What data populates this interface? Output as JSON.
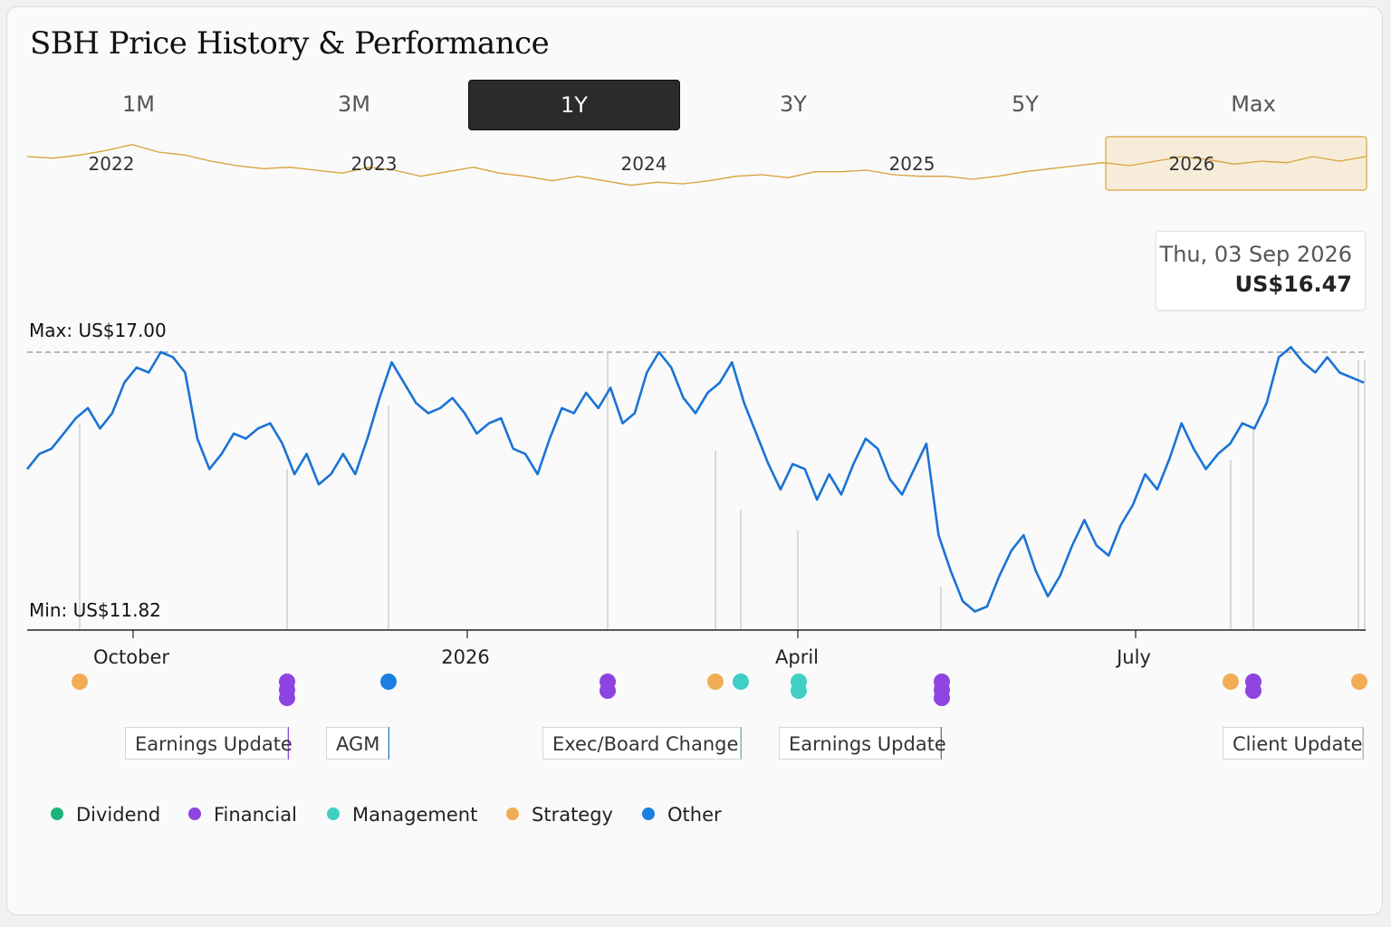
{
  "page_title": "SBH Price History & Performance",
  "tabs": [
    {
      "label": "1M",
      "active": false
    },
    {
      "label": "3M",
      "active": false
    },
    {
      "label": "1Y",
      "active": true
    },
    {
      "label": "3Y",
      "active": false
    },
    {
      "label": "5Y",
      "active": false
    },
    {
      "label": "Max",
      "active": false
    }
  ],
  "tooltip": {
    "date": "Thu, 03 Sep 2026",
    "price": "US$16.47"
  },
  "reference_lines": {
    "max_label": "Max: US$17.00",
    "min_label": "Min: US$11.82"
  },
  "event_labels": [
    {
      "text": "Earnings Update",
      "category": "Financial"
    },
    {
      "text": "AGM",
      "category": "Other"
    },
    {
      "text": "Exec/Board Change",
      "category": "Management"
    },
    {
      "text": "Earnings Update",
      "category": "Financial"
    },
    {
      "text": "Client Update",
      "category": "Strategy"
    }
  ],
  "legend": [
    {
      "label": "Dividend",
      "color": "#1db37a"
    },
    {
      "label": "Financial",
      "color": "#8e44e0"
    },
    {
      "label": "Management",
      "color": "#3fcfc4"
    },
    {
      "label": "Strategy",
      "color": "#f0ad55"
    },
    {
      "label": "Other",
      "color": "#1a7fe0"
    }
  ],
  "colors": {
    "price_line": "#1a73d6",
    "overview_line": "#d9a13a",
    "overview_window": "#d9a13a"
  },
  "chart_data": [
    {
      "type": "line",
      "role": "overview",
      "x_tick_labels": [
        "2022",
        "2023",
        "2024",
        "2025",
        "2026"
      ],
      "selected_window": "2026",
      "values": [
        15.6,
        15.5,
        15.7,
        16.0,
        16.4,
        15.9,
        15.7,
        15.3,
        15.0,
        14.8,
        14.9,
        14.7,
        14.5,
        14.9,
        14.7,
        14.3,
        14.6,
        14.9,
        14.5,
        14.3,
        14.0,
        14.3,
        14.0,
        13.7,
        13.9,
        13.8,
        14.0,
        14.3,
        14.4,
        14.2,
        14.6,
        14.6,
        14.7,
        14.4,
        14.3,
        14.3,
        14.1,
        14.3,
        14.6,
        14.8,
        15.0,
        15.2,
        15.0,
        15.3,
        15.6,
        15.4,
        15.1,
        15.3,
        15.2,
        15.6,
        15.3,
        15.6
      ]
    },
    {
      "type": "line",
      "role": "main",
      "x_tick_labels": [
        "October",
        "2026",
        "April",
        "July"
      ],
      "y_reference": {
        "max": 17.0,
        "min": 11.82
      },
      "last_point": {
        "date": "Thu, 03 Sep 2026",
        "value": 16.47
      },
      "values": [
        14.7,
        15.0,
        15.1,
        15.4,
        15.7,
        15.9,
        15.5,
        15.8,
        16.4,
        16.7,
        16.6,
        17.0,
        16.9,
        16.6,
        15.3,
        14.7,
        15.0,
        15.4,
        15.3,
        15.5,
        15.6,
        15.2,
        14.6,
        15.0,
        14.4,
        14.6,
        15.0,
        14.6,
        15.3,
        16.1,
        16.8,
        16.4,
        16.0,
        15.8,
        15.9,
        16.1,
        15.8,
        15.4,
        15.6,
        15.7,
        15.1,
        15.0,
        14.6,
        15.3,
        15.9,
        15.8,
        16.2,
        15.9,
        16.3,
        15.6,
        15.8,
        16.6,
        17.0,
        16.7,
        16.1,
        15.8,
        16.2,
        16.4,
        16.8,
        16.0,
        15.4,
        14.8,
        14.3,
        14.8,
        14.7,
        14.1,
        14.6,
        14.2,
        14.8,
        15.3,
        15.1,
        14.5,
        14.2,
        14.7,
        15.2,
        13.4,
        12.7,
        12.1,
        11.9,
        12.0,
        12.6,
        13.1,
        13.4,
        12.7,
        12.2,
        12.6,
        13.2,
        13.7,
        13.2,
        13.0,
        13.6,
        14.0,
        14.6,
        14.3,
        14.9,
        15.6,
        15.1,
        14.7,
        15.0,
        15.2,
        15.6,
        15.5,
        16.0,
        16.9,
        17.1,
        16.8,
        16.6,
        16.9,
        16.6,
        16.5,
        16.4
      ]
    }
  ]
}
